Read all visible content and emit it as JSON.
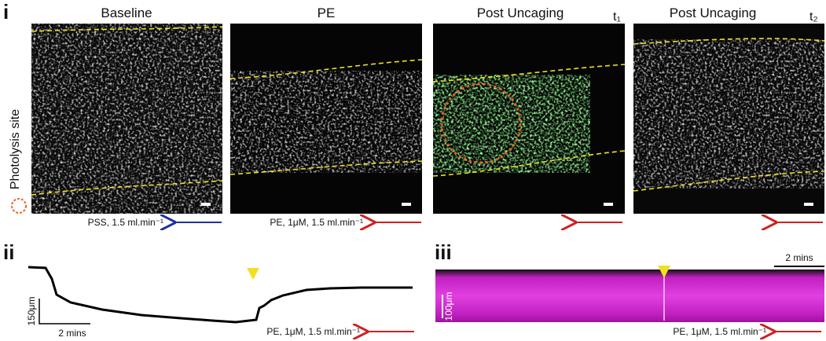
{
  "panel_i": {
    "label": "i",
    "side_label": "Photolysis site",
    "images": [
      {
        "title": "Baseline",
        "flow": "PSS, 1.5 ml.min⁻¹"
      },
      {
        "title": "PE",
        "flow": "PE, 1μM, 1.5 ml.min⁻¹"
      },
      {
        "title": "Post Uncaging",
        "time": "t₁"
      },
      {
        "title": "Post Uncaging",
        "time": "t₂"
      }
    ]
  },
  "panel_ii": {
    "label": "ii",
    "scale_y": "150μm",
    "scale_x": "2 mins",
    "flow": "PE, 1μM, 1.5 ml.min⁻¹"
  },
  "panel_iii": {
    "label": "iii",
    "scale_x": "2 mins",
    "scale_y": "100μm",
    "flow": "PE, 1μM, 1.5 ml.min⁻¹"
  }
}
